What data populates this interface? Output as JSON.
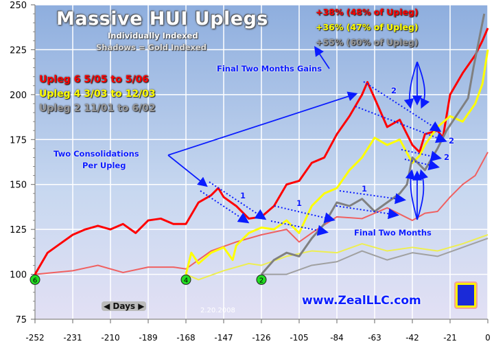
{
  "chart_data": {
    "type": "line",
    "title": "Massive HUI Uplegs",
    "subtitle": [
      "Individually Indexed",
      "Shadows = Gold Indexed"
    ],
    "xlabel": "Days",
    "ylabel": "",
    "xlim": [
      -252,
      0
    ],
    "ylim": [
      75,
      250
    ],
    "x_ticks": [
      "-252",
      "-231",
      "-210",
      "-189",
      "-168",
      "-147",
      "-126",
      "-105",
      "-84",
      "-63",
      "-42",
      "-21",
      "0"
    ],
    "y_ticks": [
      "75",
      "100",
      "125",
      "150",
      "175",
      "200",
      "225",
      "250"
    ],
    "grid": true,
    "legend_placement": "top-left",
    "legend": [
      {
        "label": "Upleg 6  5/05 to 5/06",
        "color": "#ff0000"
      },
      {
        "label": "Upleg 4  3/03 to 12/03",
        "color": "#ffff00"
      },
      {
        "label": "Upleg 2  11/01 to 6/02",
        "color": "#888888"
      }
    ],
    "series": [
      {
        "name": "Upleg 6  5/05 to 5/06",
        "color": "#ff0000",
        "x": [
          -252,
          -245,
          -238,
          -231,
          -224,
          -217,
          -210,
          -203,
          -196,
          -189,
          -182,
          -175,
          -168,
          -161,
          -154,
          -150,
          -147,
          -140,
          -133,
          -126,
          -119,
          -112,
          -105,
          -98,
          -91,
          -84,
          -77,
          -70,
          -67,
          -63,
          -56,
          -49,
          -42,
          -38,
          -35,
          -28,
          -25,
          -21,
          -14,
          -7,
          -3,
          0
        ],
        "y": [
          100,
          112,
          117,
          122,
          125,
          127,
          125,
          128,
          123,
          130,
          131,
          128,
          128,
          140,
          144,
          148,
          143,
          138,
          131,
          132,
          138,
          150,
          152,
          162,
          165,
          178,
          188,
          200,
          207,
          198,
          182,
          186,
          172,
          168,
          178,
          180,
          176,
          200,
          212,
          222,
          230,
          237
        ]
      },
      {
        "name": "Upleg 6 gold indexed",
        "color": "#f06060",
        "shadow": true,
        "x": [
          -252,
          -231,
          -217,
          -203,
          -189,
          -175,
          -168,
          -154,
          -140,
          -126,
          -112,
          -105,
          -98,
          -84,
          -70,
          -56,
          -42,
          -35,
          -28,
          -21,
          -14,
          -7,
          0
        ],
        "y": [
          100,
          102,
          105,
          101,
          104,
          104,
          103,
          113,
          118,
          122,
          125,
          118,
          123,
          132,
          131,
          137,
          130,
          134,
          135,
          143,
          150,
          155,
          168
        ]
      },
      {
        "name": "Upleg 4  3/03 to 12/03",
        "color": "#ffff00",
        "x": [
          -168,
          -165,
          -161,
          -154,
          -147,
          -142,
          -140,
          -133,
          -126,
          -119,
          -112,
          -105,
          -98,
          -91,
          -84,
          -77,
          -70,
          -63,
          -56,
          -49,
          -42,
          -38,
          -35,
          -28,
          -21,
          -14,
          -7,
          -3,
          0
        ],
        "y": [
          100,
          112,
          106,
          112,
          115,
          108,
          116,
          123,
          126,
          125,
          130,
          123,
          138,
          145,
          148,
          158,
          165,
          176,
          172,
          175,
          162,
          166,
          172,
          182,
          188,
          185,
          195,
          206,
          225
        ]
      },
      {
        "name": "Upleg 4 gold indexed",
        "color": "#eeee50",
        "shadow": true,
        "x": [
          -168,
          -161,
          -147,
          -133,
          -126,
          -112,
          -98,
          -84,
          -70,
          -56,
          -42,
          -28,
          -14,
          0
        ],
        "y": [
          100,
          97,
          102,
          106,
          105,
          110,
          113,
          112,
          117,
          113,
          115,
          113,
          117,
          122
        ]
      },
      {
        "name": "Upleg 2  11/01 to 6/02",
        "color": "#808080",
        "x": [
          -126,
          -119,
          -112,
          -105,
          -98,
          -91,
          -84,
          -77,
          -70,
          -63,
          -56,
          -49,
          -45,
          -42,
          -35,
          -28,
          -23,
          -11,
          -8,
          -2
        ],
        "y": [
          100,
          108,
          112,
          110,
          120,
          128,
          140,
          138,
          142,
          135,
          140,
          145,
          150,
          165,
          158,
          170,
          180,
          198,
          215,
          245
        ]
      },
      {
        "name": "Upleg 2 gold indexed",
        "color": "#a0a0a0",
        "shadow": true,
        "x": [
          -126,
          -112,
          -98,
          -84,
          -70,
          -56,
          -42,
          -28,
          -14,
          0
        ],
        "y": [
          100,
          100,
          105,
          107,
          113,
          108,
          112,
          110,
          115,
          120
        ]
      }
    ],
    "start_markers": [
      {
        "label": "6",
        "x": -252
      },
      {
        "label": "4",
        "x": -168
      },
      {
        "label": "2",
        "x": -126
      }
    ],
    "annotations": {
      "gains": [
        {
          "text": "+38% (48% of Upleg)",
          "color": "#ff0000"
        },
        {
          "text": "+36% (47% of Upleg)",
          "color": "#ffff00"
        },
        {
          "text": "+55% (60% of Upleg)",
          "color": "#999999"
        }
      ],
      "final_two_months_gains": "Final Two Months Gains",
      "two_consolidations": [
        "Two Consolidations",
        "Per Upleg"
      ],
      "final_two_months": "Final Two Months",
      "consolidation_labels": [
        "1",
        "1",
        "1",
        "2",
        "2",
        "2"
      ],
      "days": "Days",
      "date": "2.20.2008",
      "website": "www.ZealLLC.com"
    }
  }
}
